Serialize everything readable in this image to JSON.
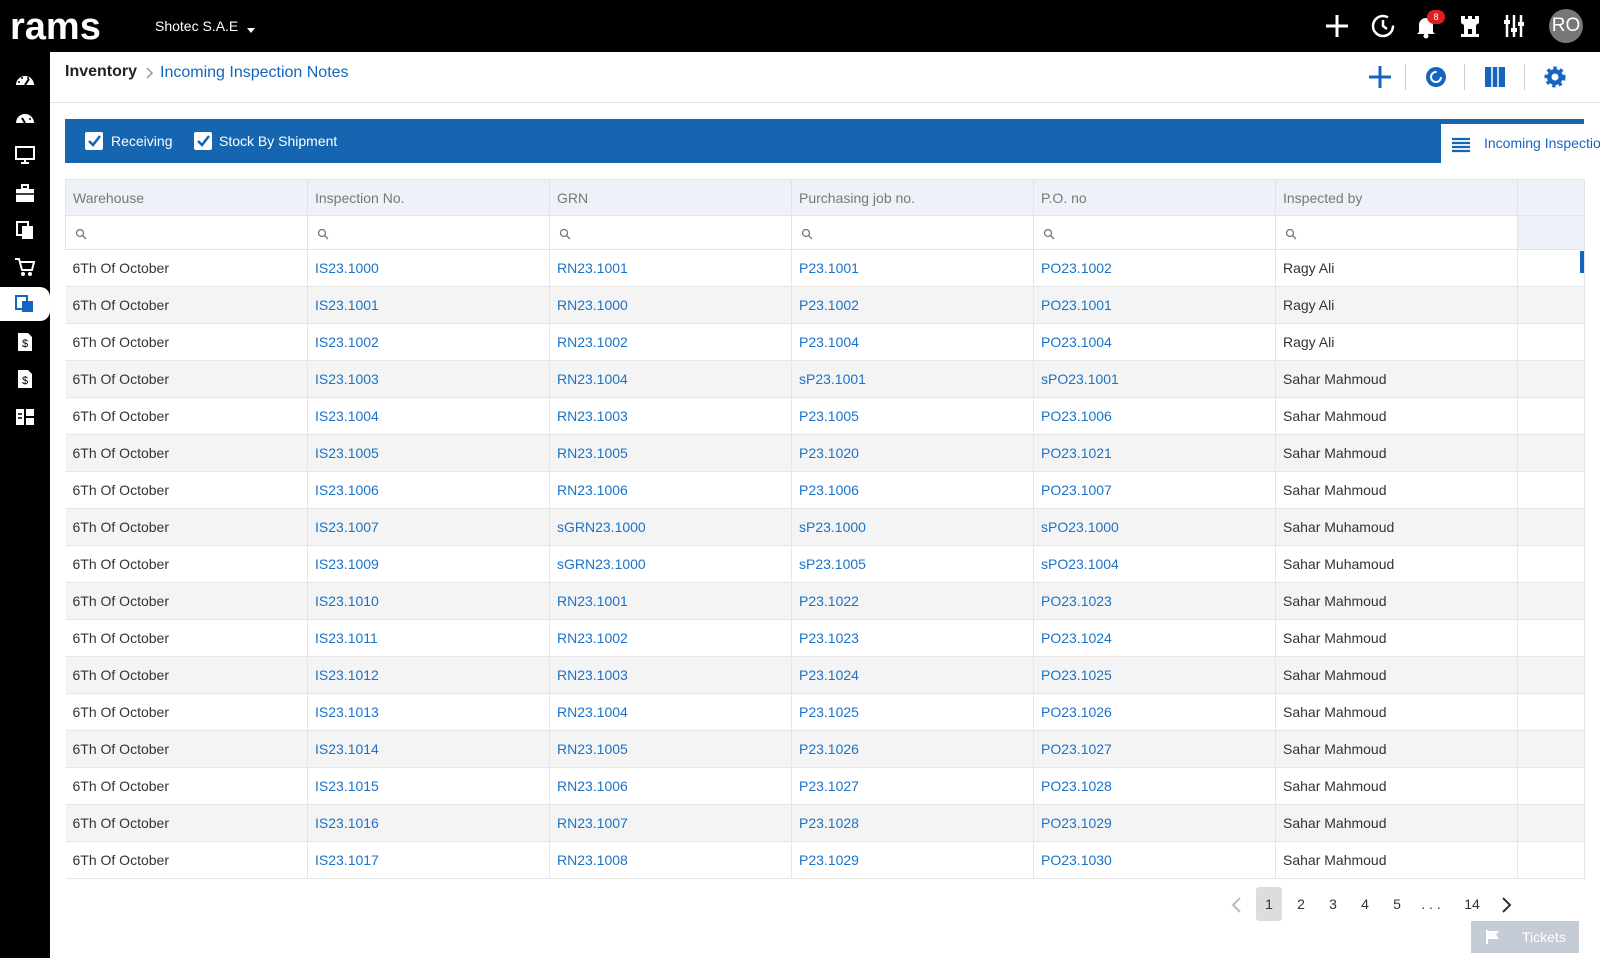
{
  "app": {
    "logo_text": "rams",
    "company": "Shotec S.A.E",
    "notifications_count": "8",
    "user_initials": "RO"
  },
  "topbar_icons": [
    "plus-icon",
    "history-icon",
    "bell-icon",
    "tower-icon",
    "sliders-icon"
  ],
  "sidebar": [
    "dashboard-icon",
    "speedometer-icon",
    "monitor-icon",
    "briefcase-icon",
    "documents-icon",
    "cart-icon",
    "inventory-icon",
    "invoice-icon",
    "invoice-alt-icon",
    "grid-layout-icon"
  ],
  "breadcrumb": {
    "root": "Inventory",
    "current": "Incoming Inspection Notes"
  },
  "toolbar": {
    "receiving": "Receiving",
    "stock_by_shipment": "Stock By Shipment",
    "view_tab": "Incoming Inspection ..."
  },
  "table": {
    "columns": [
      "Warehouse",
      "Inspection No.",
      "GRN",
      "Purchasing job no.",
      "P.O. no",
      "Inspected by"
    ],
    "rows": [
      [
        "6Th Of October",
        "IS23.1000",
        "RN23.1001",
        "P23.1001",
        "PO23.1002",
        "Ragy Ali"
      ],
      [
        "6Th Of October",
        "IS23.1001",
        "RN23.1000",
        "P23.1002",
        "PO23.1001",
        "Ragy Ali"
      ],
      [
        "6Th Of October",
        "IS23.1002",
        "RN23.1002",
        "P23.1004",
        "PO23.1004",
        "Ragy Ali"
      ],
      [
        "6Th Of October",
        "IS23.1003",
        "RN23.1004",
        "sP23.1001",
        "sPO23.1001",
        "Sahar Mahmoud"
      ],
      [
        "6Th Of October",
        "IS23.1004",
        "RN23.1003",
        "P23.1005",
        "PO23.1006",
        "Sahar Mahmoud"
      ],
      [
        "6Th Of October",
        "IS23.1005",
        "RN23.1005",
        "P23.1020",
        "PO23.1021",
        "Sahar Mahmoud"
      ],
      [
        "6Th Of October",
        "IS23.1006",
        "RN23.1006",
        "P23.1006",
        "PO23.1007",
        "Sahar Mahmoud"
      ],
      [
        "6Th Of October",
        "IS23.1007",
        "sGRN23.1000",
        "sP23.1000",
        "sPO23.1000",
        "Sahar Muhamoud"
      ],
      [
        "6Th Of October",
        "IS23.1009",
        "sGRN23.1000",
        "sP23.1005",
        "sPO23.1004",
        "Sahar Muhamoud"
      ],
      [
        "6Th Of October",
        "IS23.1010",
        "RN23.1001",
        "P23.1022",
        "PO23.1023",
        "Sahar Mahmoud"
      ],
      [
        "6Th Of October",
        "IS23.1011",
        "RN23.1002",
        "P23.1023",
        "PO23.1024",
        "Sahar Mahmoud"
      ],
      [
        "6Th Of October",
        "IS23.1012",
        "RN23.1003",
        "P23.1024",
        "PO23.1025",
        "Sahar Mahmoud"
      ],
      [
        "6Th Of October",
        "IS23.1013",
        "RN23.1004",
        "P23.1025",
        "PO23.1026",
        "Sahar Mahmoud"
      ],
      [
        "6Th Of October",
        "IS23.1014",
        "RN23.1005",
        "P23.1026",
        "PO23.1027",
        "Sahar Mahmoud"
      ],
      [
        "6Th Of October",
        "IS23.1015",
        "RN23.1006",
        "P23.1027",
        "PO23.1028",
        "Sahar Mahmoud"
      ],
      [
        "6Th Of October",
        "IS23.1016",
        "RN23.1007",
        "P23.1028",
        "PO23.1029",
        "Sahar Mahmoud"
      ],
      [
        "6Th Of October",
        "IS23.1017",
        "RN23.1008",
        "P23.1029",
        "PO23.1030",
        "Sahar Mahmoud"
      ]
    ]
  },
  "pagination": {
    "current": "1",
    "pages": [
      "1",
      "2",
      "3",
      "4",
      "5",
      ". . .",
      "14"
    ]
  },
  "tickets_label": "Tickets",
  "colors": {
    "topbar": "#000000",
    "accent": "#1565b0",
    "link": "#1a73c8",
    "header_bg": "#eef2f8"
  }
}
